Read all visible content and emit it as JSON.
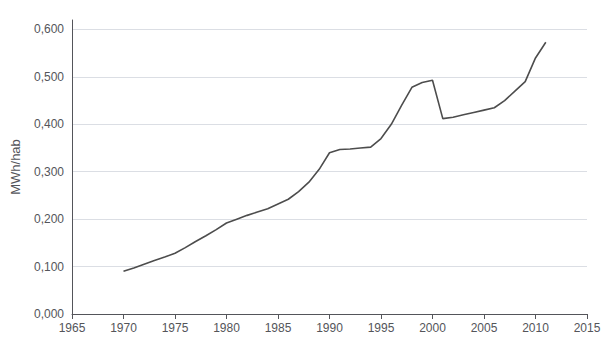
{
  "chart_data": {
    "type": "line",
    "ylabel": "MWh/hab",
    "x": [
      1970,
      1971,
      1972,
      1973,
      1974,
      1975,
      1976,
      1977,
      1978,
      1979,
      1980,
      1981,
      1982,
      1983,
      1984,
      1985,
      1986,
      1987,
      1988,
      1989,
      1990,
      1991,
      1992,
      1993,
      1994,
      1995,
      1996,
      1997,
      1998,
      1999,
      2000,
      2001,
      2002,
      2003,
      2004,
      2005,
      2006,
      2007,
      2008,
      2009,
      2010,
      2011
    ],
    "values": [
      0.09,
      0.097,
      0.105,
      0.113,
      0.12,
      0.128,
      0.14,
      0.153,
      0.165,
      0.178,
      0.192,
      0.2,
      0.208,
      0.215,
      0.222,
      0.232,
      0.242,
      0.258,
      0.278,
      0.305,
      0.34,
      0.347,
      0.348,
      0.35,
      0.352,
      0.37,
      0.4,
      0.44,
      0.478,
      0.488,
      0.493,
      0.412,
      0.415,
      0.42,
      0.425,
      0.43,
      0.435,
      0.45,
      0.47,
      0.49,
      0.54,
      0.573
    ],
    "color": "#4d4d4d",
    "xlim": [
      1965,
      2015
    ],
    "xticks": [
      1965,
      1970,
      1975,
      1980,
      1985,
      1990,
      1995,
      2000,
      2005,
      2010,
      2015
    ],
    "ylim": [
      0.0,
      0.62
    ],
    "yticks": [
      {
        "value": 0.0,
        "label": "0,000"
      },
      {
        "value": 0.1,
        "label": "0,100"
      },
      {
        "value": 0.2,
        "label": "0,200"
      },
      {
        "value": 0.3,
        "label": "0,300"
      },
      {
        "value": 0.4,
        "label": "0,400"
      },
      {
        "value": 0.5,
        "label": "0,500"
      },
      {
        "value": 0.6,
        "label": "0,600"
      }
    ],
    "grid": true
  }
}
